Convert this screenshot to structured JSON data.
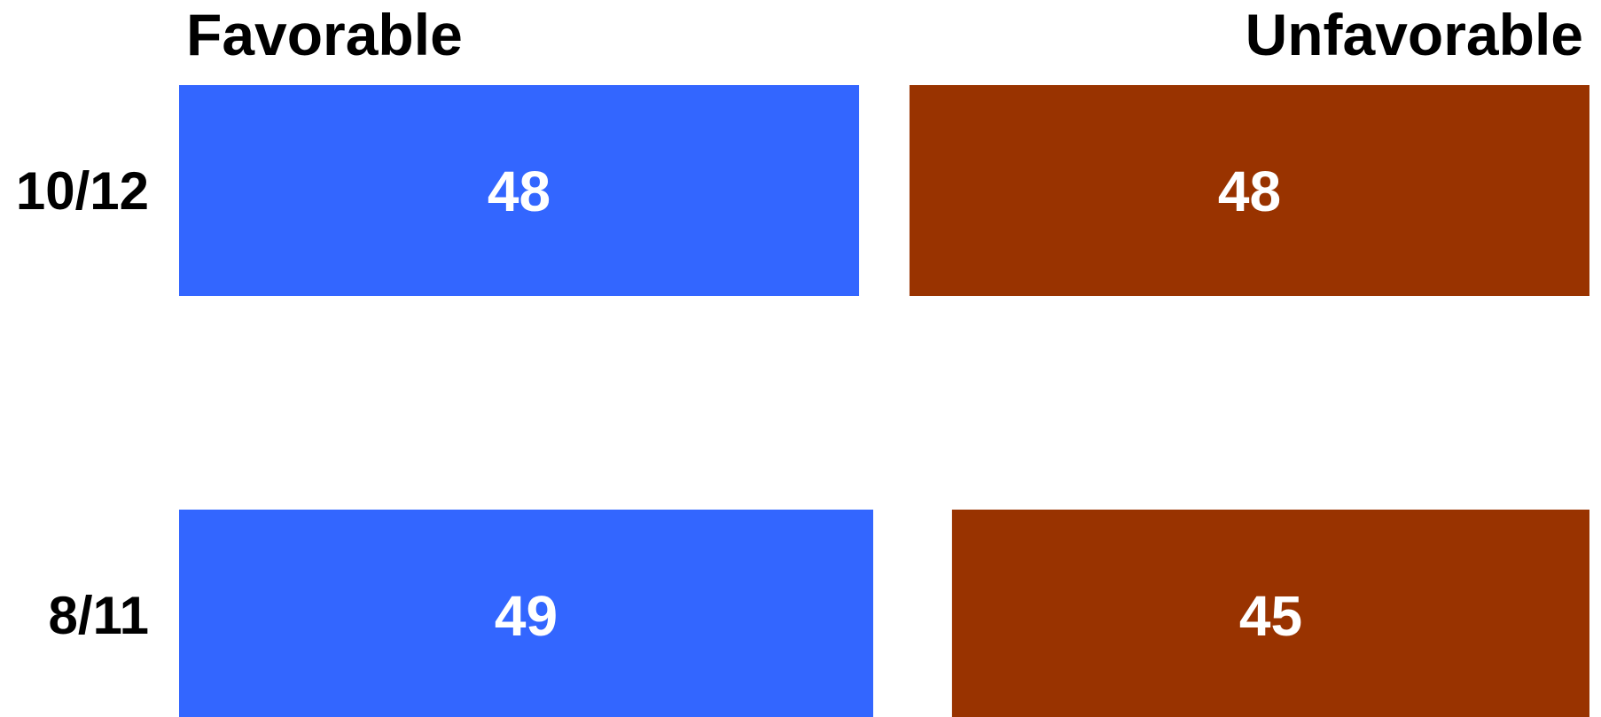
{
  "chart_data": {
    "type": "bar",
    "orientation": "horizontal",
    "layout": "diverging",
    "categories": [
      "10/12",
      "8/11"
    ],
    "series": [
      {
        "name": "Favorable",
        "values": [
          48,
          49
        ],
        "color": "#3366ff"
      },
      {
        "name": "Unfavorable",
        "values": [
          48,
          45
        ],
        "color": "#993300"
      }
    ],
    "xlim": [
      0,
      50
    ],
    "grid": false,
    "legend": "top"
  }
}
